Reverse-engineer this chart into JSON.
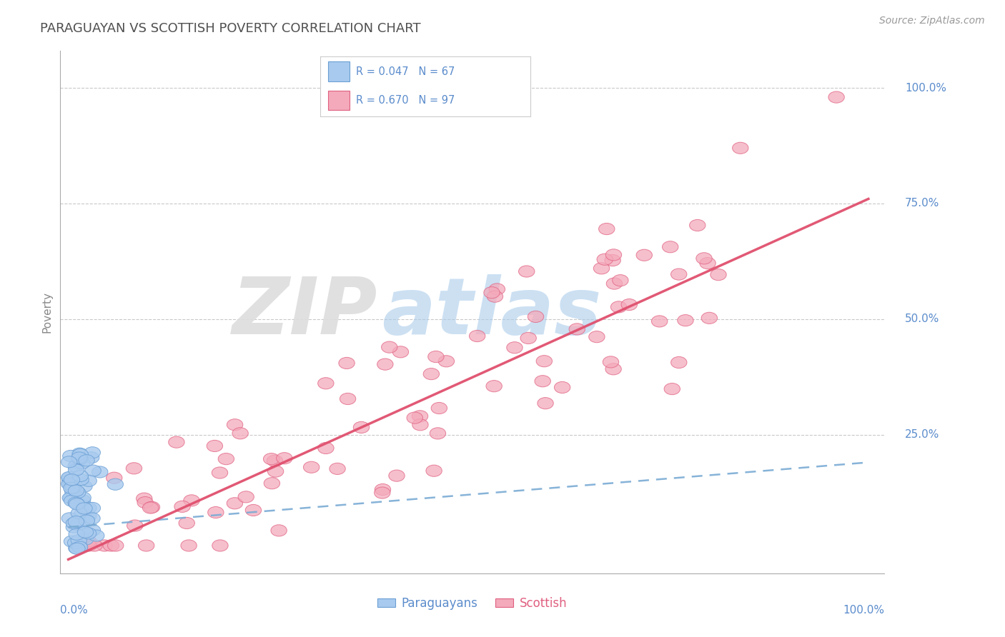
{
  "title": "PARAGUAYAN VS SCOTTISH POVERTY CORRELATION CHART",
  "source": "Source: ZipAtlas.com",
  "ylabel": "Poverty",
  "blue_R": 0.047,
  "blue_N": 67,
  "pink_R": 0.67,
  "pink_N": 97,
  "blue_color": "#A8CAEE",
  "blue_edge_color": "#6B9FD4",
  "pink_color": "#F4AABB",
  "pink_edge_color": "#E06080",
  "pink_line_color": "#E0506E",
  "blue_line_color": "#7AABD4",
  "background_color": "#FFFFFF",
  "grid_color": "#CCCCCC",
  "title_color": "#505050",
  "axis_label_color": "#5B8CCC",
  "blue_slope": 0.14,
  "blue_intercept": 0.05,
  "pink_slope": 0.78,
  "pink_intercept": -0.02
}
